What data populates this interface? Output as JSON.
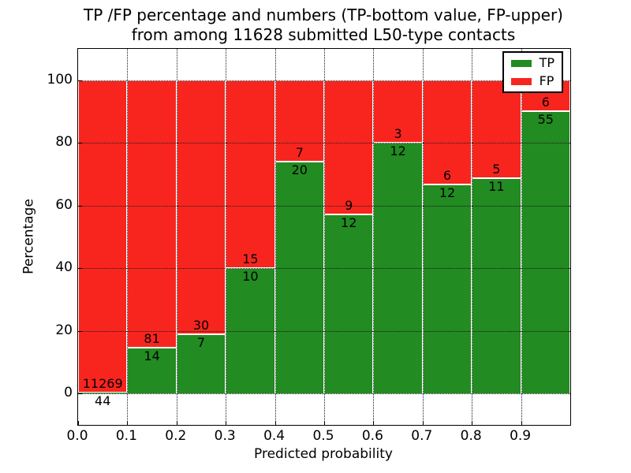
{
  "figure": {
    "title_line1": "TP /FP percentage and numbers (TP-bottom value, FP-upper)",
    "title_line2": "from among 11628 submitted L50-type contacts",
    "xlabel": "Predicted probability",
    "ylabel": "Percentage"
  },
  "legend": {
    "items": [
      {
        "label": "TP",
        "color": "#228b22"
      },
      {
        "label": "FP",
        "color": "#f8251f"
      }
    ]
  },
  "chart_data": {
    "type": "bar",
    "stacked": true,
    "percent_normalized": true,
    "title": "TP /FP percentage and numbers (TP-bottom value, FP-upper) from among 11628 submitted L50-type contacts",
    "xlabel": "Predicted probability",
    "ylabel": "Percentage",
    "xlim": [
      0.0,
      1.0
    ],
    "ylim": [
      -10,
      110
    ],
    "x_tick_labels": [
      "0.0",
      "0.1",
      "0.2",
      "0.3",
      "0.4",
      "0.5",
      "0.6",
      "0.7",
      "0.8",
      "0.9"
    ],
    "y_ticks": [
      0,
      20,
      40,
      60,
      80,
      100
    ],
    "grid": "dotted",
    "legend_position": "upper right",
    "total_contacts": 11628,
    "bin_edges": [
      0.0,
      0.1,
      0.2,
      0.3,
      0.4,
      0.5,
      0.6,
      0.7,
      0.8,
      0.9,
      1.0
    ],
    "series": [
      {
        "name": "TP",
        "color": "#228b22",
        "counts": [
          44,
          14,
          7,
          10,
          20,
          12,
          12,
          12,
          11,
          55
        ]
      },
      {
        "name": "FP",
        "color": "#f8251f",
        "counts": [
          11269,
          81,
          30,
          15,
          7,
          9,
          3,
          6,
          5,
          6
        ]
      }
    ],
    "bar_edge_color": "#ffffff",
    "tp_percent_of_bin": [
      0.39,
      14.74,
      18.92,
      40.0,
      74.07,
      57.14,
      80.0,
      66.67,
      68.75,
      90.16
    ]
  }
}
